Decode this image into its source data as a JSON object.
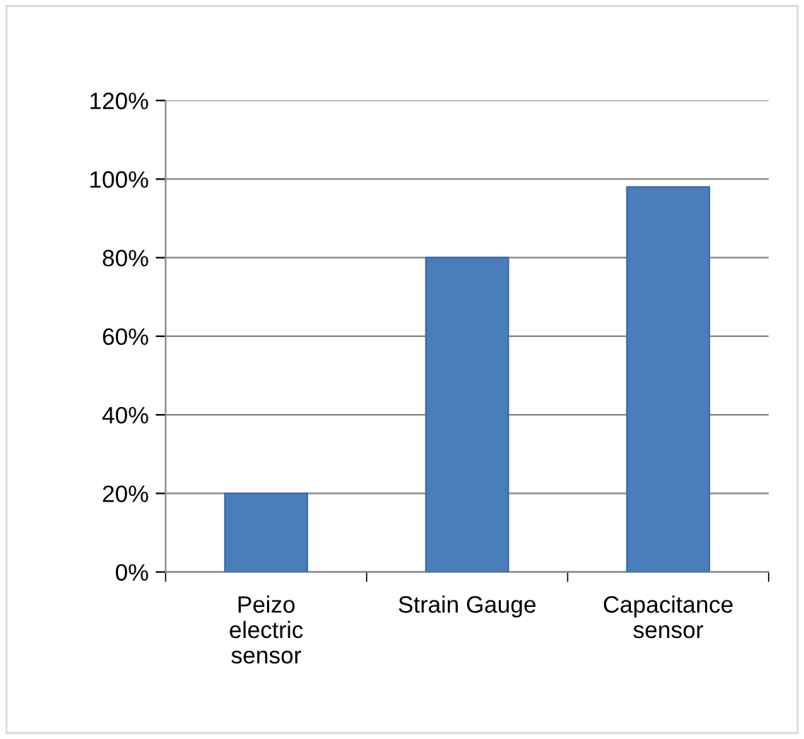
{
  "chart_data": {
    "type": "bar",
    "categories": [
      "Peizo\nelectric\nsensor",
      "Strain Gauge",
      "Capacitance\nsensor"
    ],
    "values": [
      20,
      80,
      98
    ],
    "color": "#4a7ebb",
    "ylim": [
      0,
      120
    ],
    "yticks": [
      {
        "value": 0,
        "label": "0%"
      },
      {
        "value": 20,
        "label": "20%"
      },
      {
        "value": 40,
        "label": "40%"
      },
      {
        "value": 60,
        "label": "60%"
      },
      {
        "value": 80,
        "label": "80%"
      },
      {
        "value": 100,
        "label": "100%"
      },
      {
        "value": 120,
        "label": "120%"
      }
    ],
    "grid": "y",
    "legend": false
  }
}
